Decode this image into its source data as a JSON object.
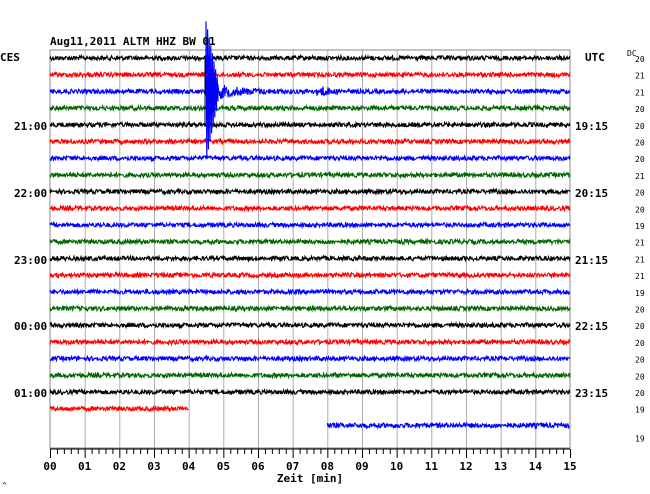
{
  "header": {
    "title": "Aug11,2011   ALTM HHZ BW 01",
    "left_zone": "CES",
    "right_zone": "UTC",
    "dc_label": "DC"
  },
  "x_axis": {
    "label": "Zeit [min]",
    "ticks": [
      "00",
      "01",
      "02",
      "03",
      "04",
      "05",
      "06",
      "07",
      "08",
      "09",
      "10",
      "11",
      "12",
      "13",
      "14",
      "15"
    ]
  },
  "left_times": [
    "21:00",
    "22:00",
    "23:00",
    "00:00",
    "01:00"
  ],
  "right_times": [
    "19:15",
    "20:15",
    "21:15",
    "22:15",
    "23:15"
  ],
  "dc_values": [
    "20",
    "21",
    "21",
    "20",
    "20",
    "20",
    "20",
    "21",
    "20",
    "20",
    "19",
    "21",
    "21",
    "21",
    "19",
    "20",
    "20",
    "20",
    "20",
    "20",
    "20",
    "19",
    "19"
  ],
  "traces": {
    "colors": [
      "#000000",
      "#ff0000",
      "#0000ff",
      "#006600"
    ],
    "partial_red_end_min": 4.0,
    "partial_blue_start_min": 8.0,
    "event_start_min": 4.5
  },
  "footer_mark": "^"
}
